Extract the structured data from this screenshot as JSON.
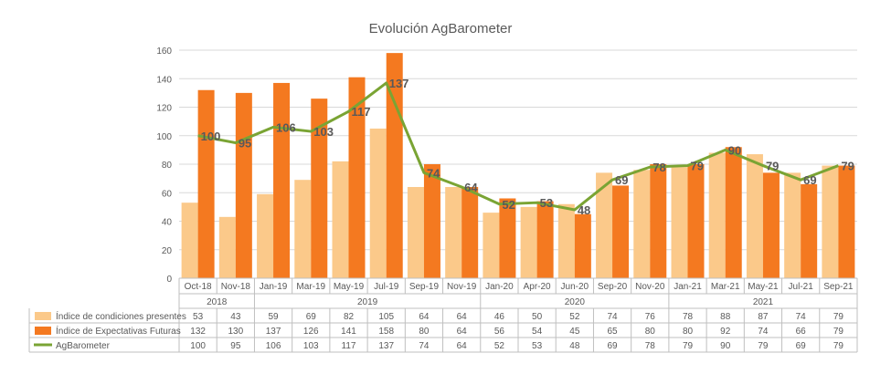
{
  "chart_data": {
    "type": "bar",
    "title": "Evolución AgBarometer",
    "categories": [
      "Oct-18",
      "Nov-18",
      "Jan-19",
      "Mar-19",
      "May-19",
      "Jul-19",
      "Sep-19",
      "Nov-19",
      "Jan-20",
      "Apr-20",
      "Jun-20",
      "Sep-20",
      "Nov-20",
      "Jan-21",
      "Mar-21",
      "May-21",
      "Jul-21",
      "Sep-21"
    ],
    "year_groups": [
      {
        "label": "2018",
        "count": 2
      },
      {
        "label": "2019",
        "count": 6
      },
      {
        "label": "2020",
        "count": 5
      },
      {
        "label": "2021",
        "count": 5
      }
    ],
    "ylim": [
      0,
      160
    ],
    "yticks": [
      0,
      20,
      40,
      60,
      80,
      100,
      120,
      140,
      160
    ],
    "grid": true,
    "series": [
      {
        "name": "Índice de condiciones presentes",
        "kind": "bar",
        "color": "#fbc98a",
        "values": [
          53,
          43,
          59,
          69,
          82,
          105,
          64,
          64,
          46,
          50,
          52,
          74,
          76,
          78,
          88,
          87,
          74,
          79
        ]
      },
      {
        "name": "Índice de Expectativas Futuras",
        "kind": "bar",
        "color": "#f47920",
        "values": [
          132,
          130,
          137,
          126,
          141,
          158,
          80,
          64,
          56,
          54,
          45,
          65,
          80,
          80,
          92,
          74,
          66,
          79
        ]
      },
      {
        "name": "AgBarometer",
        "kind": "line",
        "color": "#7aa434",
        "values": [
          100,
          95,
          106,
          103,
          117,
          137,
          74,
          64,
          52,
          53,
          48,
          69,
          78,
          79,
          90,
          79,
          69,
          79
        ]
      }
    ]
  }
}
